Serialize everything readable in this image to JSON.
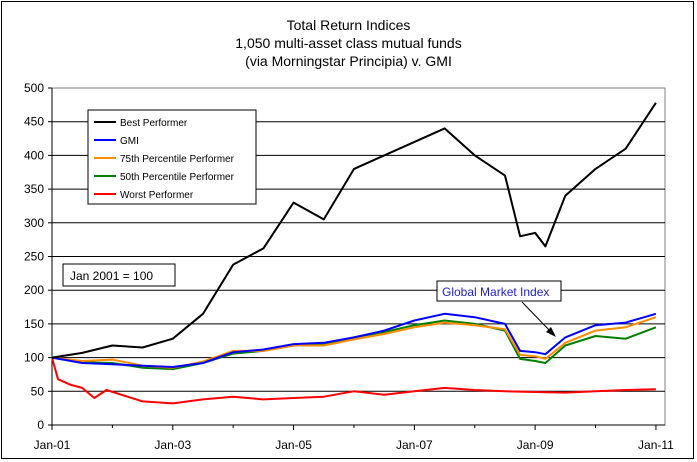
{
  "chart_data": {
    "type": "line",
    "title_lines": [
      "Total Return Indices",
      "1,050 multi-asset class mutual funds",
      "(via Morningstar Principia) v. GMI"
    ],
    "xlabel": "",
    "ylabel": "",
    "ylim": [
      0,
      500
    ],
    "y_ticks": [
      0,
      50,
      100,
      150,
      200,
      250,
      300,
      350,
      400,
      450,
      500
    ],
    "x_range": [
      "2001-01",
      "2011-01"
    ],
    "x_ticks": [
      "Jan-01",
      "Jan-03",
      "Jan-05",
      "Jan-07",
      "Jan-09",
      "Jan-11"
    ],
    "grid": "horizontal",
    "legend_placement": "top-left",
    "note": "Jan 2001 = 100",
    "annotation": "Global Market Index",
    "series": [
      {
        "name": "Best Performer",
        "color": "#000000",
        "x": [
          2001.0,
          2001.5,
          2002.0,
          2002.5,
          2003.0,
          2003.5,
          2004.0,
          2004.5,
          2005.0,
          2005.5,
          2006.0,
          2006.5,
          2007.0,
          2007.5,
          2008.0,
          2008.5,
          2008.75,
          2009.0,
          2009.17,
          2009.5,
          2010.0,
          2010.5,
          2011.0
        ],
        "values": [
          100,
          107,
          118,
          115,
          128,
          165,
          238,
          262,
          330,
          305,
          380,
          400,
          420,
          440,
          400,
          370,
          280,
          285,
          265,
          340,
          380,
          410,
          478
        ]
      },
      {
        "name": "GMI",
        "color": "#0000ff",
        "x": [
          2001.0,
          2001.5,
          2002.0,
          2002.5,
          2003.0,
          2003.5,
          2004.0,
          2004.5,
          2005.0,
          2005.5,
          2006.0,
          2006.5,
          2007.0,
          2007.5,
          2008.0,
          2008.5,
          2008.75,
          2009.0,
          2009.17,
          2009.5,
          2010.0,
          2010.5,
          2011.0
        ],
        "values": [
          100,
          92,
          90,
          88,
          86,
          92,
          108,
          112,
          120,
          122,
          130,
          140,
          155,
          165,
          160,
          150,
          110,
          108,
          105,
          130,
          148,
          152,
          165
        ]
      },
      {
        "name": "75th Percentile Performer",
        "color": "#ff8c00",
        "x": [
          2001.0,
          2001.5,
          2002.0,
          2002.5,
          2003.0,
          2003.5,
          2004.0,
          2004.5,
          2005.0,
          2005.5,
          2006.0,
          2006.5,
          2007.0,
          2007.5,
          2008.0,
          2008.5,
          2008.75,
          2009.0,
          2009.17,
          2009.5,
          2010.0,
          2010.5,
          2011.0
        ],
        "values": [
          100,
          95,
          97,
          88,
          85,
          94,
          110,
          110,
          118,
          118,
          127,
          135,
          145,
          152,
          148,
          142,
          104,
          102,
          98,
          122,
          140,
          145,
          160
        ]
      },
      {
        "name": "50th Percentile Performer",
        "color": "#008000",
        "x": [
          2001.0,
          2001.5,
          2002.0,
          2002.5,
          2003.0,
          2003.5,
          2004.0,
          2004.5,
          2005.0,
          2005.5,
          2006.0,
          2006.5,
          2007.0,
          2007.5,
          2008.0,
          2008.5,
          2008.75,
          2009.0,
          2009.17,
          2009.5,
          2010.0,
          2010.5,
          2011.0
        ],
        "values": [
          100,
          93,
          92,
          85,
          83,
          92,
          106,
          110,
          118,
          120,
          130,
          138,
          148,
          155,
          150,
          140,
          98,
          95,
          92,
          118,
          132,
          128,
          145
        ]
      },
      {
        "name": "Worst Performer",
        "color": "#ff0000",
        "x": [
          2001.0,
          2001.1,
          2001.3,
          2001.5,
          2001.7,
          2001.9,
          2002.5,
          2003.0,
          2003.5,
          2004.0,
          2004.5,
          2005.0,
          2005.5,
          2006.0,
          2006.5,
          2007.0,
          2007.5,
          2008.0,
          2008.5,
          2009.0,
          2009.5,
          2010.0,
          2010.5,
          2011.0
        ],
        "values": [
          100,
          68,
          60,
          55,
          40,
          52,
          35,
          32,
          38,
          42,
          38,
          40,
          42,
          50,
          45,
          50,
          55,
          52,
          50,
          49,
          48,
          50,
          52,
          53
        ]
      }
    ]
  }
}
